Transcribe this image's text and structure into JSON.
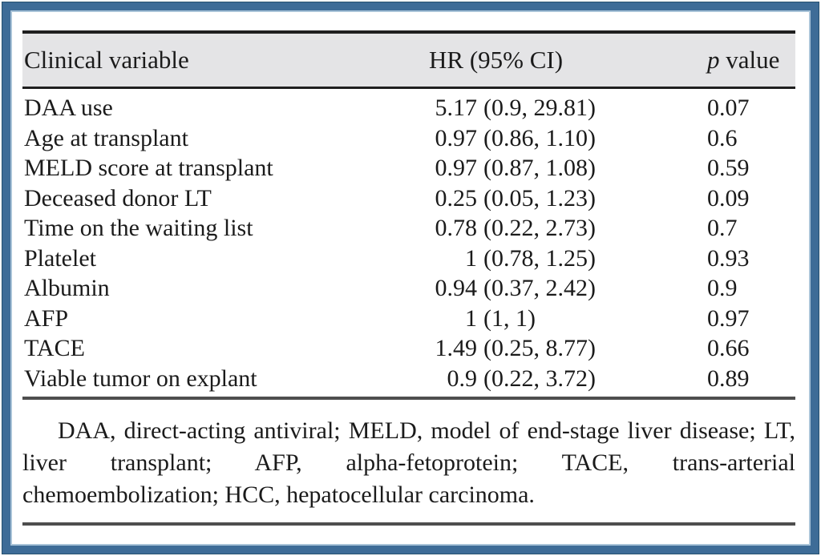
{
  "colors": {
    "frame_border": "#3e6c97",
    "frame_border_dark_edge": "#27516f",
    "frame_border_light_edge": "#a9c3d8",
    "header_background": "#e4e4e6",
    "rule_dark": "#1f1f1f",
    "rule_gray": "#4e4e4e",
    "text": "#1b1b1b"
  },
  "table": {
    "headers": {
      "variable": "Clinical variable",
      "hr": "HR (95% CI)",
      "p_italic": "p",
      "p_rest": " value"
    },
    "rows": [
      {
        "variable": "DAA use",
        "hr": "5.17",
        "ci": "(0.9, 29.81)",
        "p": "0.07"
      },
      {
        "variable": "Age at transplant",
        "hr": "0.97",
        "ci": "(0.86, 1.10)",
        "p": "0.6"
      },
      {
        "variable": "MELD score at transplant",
        "hr": "0.97",
        "ci": "(0.87, 1.08)",
        "p": "0.59"
      },
      {
        "variable": "Deceased donor LT",
        "hr": "0.25",
        "ci": "(0.05, 1.23)",
        "p": "0.09"
      },
      {
        "variable": "Time on the waiting list",
        "hr": "0.78",
        "ci": "(0.22, 2.73)",
        "p": "0.7"
      },
      {
        "variable": "Platelet",
        "hr": "1",
        "ci": "(0.78, 1.25)",
        "p": "0.93"
      },
      {
        "variable": "Albumin",
        "hr": "0.94",
        "ci": "(0.37, 2.42)",
        "p": "0.9"
      },
      {
        "variable": "AFP",
        "hr": "1",
        "ci": "(1, 1)",
        "p": "0.97"
      },
      {
        "variable": "TACE",
        "hr": "1.49",
        "ci": "(0.25, 8.77)",
        "p": "0.66"
      },
      {
        "variable": "Viable tumor on explant",
        "hr": "0.9",
        "ci": "(0.22, 3.72)",
        "p": "0.89"
      }
    ]
  },
  "footnote": "DAA, direct-acting antiviral; MELD, model of end-stage liver disease; LT, liver transplant; AFP, alpha-fetoprotein; TACE, trans-arterial chemoembolization; HCC, hepatocellular carcinoma."
}
